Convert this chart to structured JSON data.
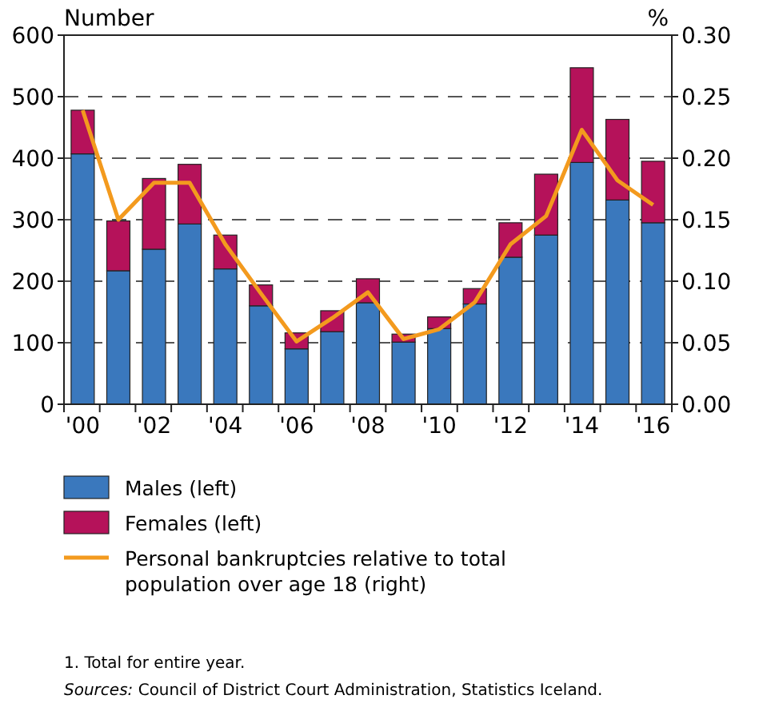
{
  "chart_data": {
    "type": "bar",
    "stacked": true,
    "ylabel": "Number",
    "y2label": "%",
    "categories": [
      "'00",
      null,
      "'02",
      null,
      "'04",
      null,
      "'06",
      null,
      "'08",
      null,
      "'10",
      null,
      "'12",
      null,
      "'14",
      null,
      "'16"
    ],
    "series": [
      {
        "name": "Males (left)",
        "color": "#3a78bd",
        "values": [
          407,
          217,
          252,
          293,
          220,
          160,
          90,
          118,
          165,
          101,
          123,
          163,
          239,
          275,
          393,
          332,
          295
        ]
      },
      {
        "name": "Females (left)",
        "color": "#b5125a",
        "values": [
          71,
          81,
          115,
          97,
          55,
          34,
          26,
          34,
          39,
          13,
          19,
          25,
          56,
          99,
          154,
          131,
          100
        ]
      },
      {
        "name": "Personal bankruptcies relative to total population over age 18 (right)",
        "type": "line",
        "axis": "y2",
        "color": "#f39a1e",
        "values": [
          0.239,
          0.15,
          0.18,
          0.18,
          0.13,
          0.09,
          0.051,
          0.07,
          0.091,
          0.053,
          0.061,
          0.083,
          0.13,
          0.153,
          0.223,
          0.182,
          0.162
        ]
      }
    ],
    "ylim": [
      0,
      600
    ],
    "yticks": [
      0,
      100,
      200,
      300,
      400,
      500,
      600
    ],
    "y2lim": [
      0,
      0.3
    ],
    "y2ticks": [
      {
        "value": 0,
        "label": "0.00"
      },
      {
        "value": 0.05,
        "label": "0.05"
      },
      {
        "value": 0.1,
        "label": "0.10"
      },
      {
        "value": 0.15,
        "label": "0.15"
      },
      {
        "value": 0.2,
        "label": "0.20"
      },
      {
        "value": 0.25,
        "label": "0.25"
      },
      {
        "value": 0.3,
        "label": "0.30"
      }
    ],
    "grid": "y",
    "legend": "bottom",
    "line_style": "solid",
    "marker": "none",
    "annotations": [
      "1. Total for entire year.",
      "Sources: Council of District Court Administration, Statistics Iceland."
    ]
  }
}
